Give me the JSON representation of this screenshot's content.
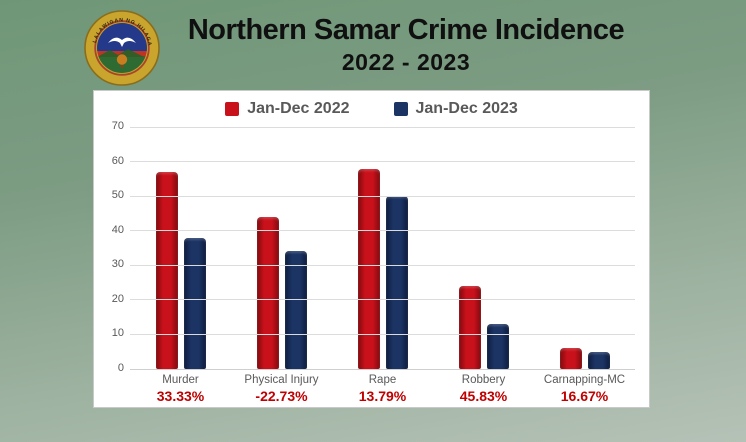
{
  "header": {
    "title": "Northern Samar Crime Incidence",
    "subtitle": "2022 - 2023",
    "logo": {
      "name": "northern-samar-provincial-seal",
      "ring_text": "LALAWIGAN NG HILAGANG SAMAR",
      "colors": {
        "ring_gold": "#c9a52e",
        "ring_edge": "#8a6d1c",
        "field_blue": "#24398a",
        "band_red": "#bf3322",
        "field_green": "#2e6b33",
        "dove_white": "#ffffff",
        "tree_orange": "#c87e1f",
        "trunk_brown": "#7a4a1c"
      }
    }
  },
  "legend": [
    {
      "label": "Jan-Dec 2022",
      "color": "#c9111b"
    },
    {
      "label": "Jan-Dec 2023",
      "color": "#1c3464"
    }
  ],
  "chart_data": {
    "type": "bar",
    "title": "Northern Samar Crime Incidence",
    "subtitle": "2022 - 2023",
    "categories": [
      "Murder",
      "Physical Injury",
      "Rape",
      "Robbery",
      "Carnapping-MC"
    ],
    "series": [
      {
        "name": "Jan-Dec 2022",
        "color": "#c9111b",
        "edge_color": "#7e0a0e",
        "values": [
          57,
          44,
          58,
          24,
          6
        ]
      },
      {
        "name": "Jan-Dec 2023",
        "color": "#1c3464",
        "edge_color": "#0c1b3d",
        "values": [
          38,
          34,
          50,
          13,
          5
        ]
      }
    ],
    "pct_change_labels": [
      "33.33%",
      "-22.73%",
      "13.79%",
      "45.83%",
      "16.67%"
    ],
    "y_ticks": [
      0,
      10,
      20,
      30,
      40,
      50,
      60,
      70
    ],
    "ylim": [
      0,
      70
    ],
    "grid": true,
    "legend_position": "top",
    "pct_label_color": "#c00000",
    "axis_text_color": "#595959"
  }
}
